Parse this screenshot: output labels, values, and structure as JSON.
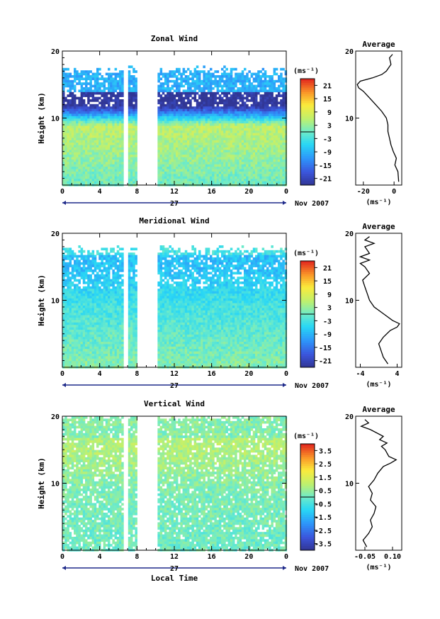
{
  "chart_data": [
    {
      "type": "heatmap",
      "title": "Zonal Wind",
      "ylabel": "Height (km)",
      "ylim": [
        0,
        20
      ],
      "y_ticks": [
        "10",
        "20"
      ],
      "x_ticks": [
        "0",
        "4",
        "8",
        "12",
        "16",
        "20",
        "0"
      ],
      "xlim": [
        0,
        24
      ],
      "day_label": "27",
      "date_label": "Nov 2007",
      "colorbar": {
        "unit_label": "(ms⁻¹)",
        "range": [
          -24,
          24
        ],
        "ticks": [
          "21",
          "15",
          "9",
          "3",
          "-3",
          "-9",
          "-15",
          "-21"
        ]
      },
      "data_gap_hours": [
        [
          6.4,
          6.9
        ],
        [
          7.8,
          10.0
        ]
      ],
      "field": {
        "surface_m_s": 0,
        "mid_m_s": 6,
        "jet_height_km": 12,
        "jet_m_s": -24,
        "top_km": 16.5
      },
      "average": {
        "title": "Average",
        "xlabel": "(ms⁻¹)",
        "x_ticks": [
          "-20",
          "0"
        ],
        "xlim": [
          -25,
          5
        ],
        "y_ticks": [
          "10",
          "20"
        ],
        "profile": [
          [
            0.5,
            3
          ],
          [
            2,
            2.5
          ],
          [
            3,
            0.5
          ],
          [
            4,
            1.5
          ],
          [
            5,
            -0.5
          ],
          [
            6,
            -2
          ],
          [
            7,
            -3
          ],
          [
            8,
            -4
          ],
          [
            9,
            -4
          ],
          [
            10,
            -5
          ],
          [
            11,
            -8
          ],
          [
            12,
            -12
          ],
          [
            13,
            -16
          ],
          [
            14,
            -20
          ],
          [
            14.5,
            -23
          ],
          [
            15,
            -24
          ],
          [
            15.5,
            -22
          ],
          [
            16,
            -14
          ],
          [
            16.5,
            -8
          ],
          [
            17,
            -5
          ],
          [
            18,
            -2
          ],
          [
            19,
            -3
          ],
          [
            19.5,
            -1
          ]
        ]
      }
    },
    {
      "type": "heatmap",
      "title": "Meridional Wind",
      "ylabel": "Height (km)",
      "ylim": [
        0,
        20
      ],
      "y_ticks": [
        "10",
        "20"
      ],
      "x_ticks": [
        "0",
        "4",
        "8",
        "12",
        "16",
        "20",
        "0"
      ],
      "xlim": [
        0,
        24
      ],
      "day_label": "27",
      "date_label": "Nov 2007",
      "colorbar": {
        "unit_label": "(ms⁻¹)",
        "range": [
          -24,
          24
        ],
        "ticks": [
          "21",
          "15",
          "9",
          "3",
          "-3",
          "-9",
          "-15",
          "-21"
        ]
      },
      "data_gap_hours": [
        [
          6.4,
          6.9
        ],
        [
          7.8,
          10.0
        ]
      ],
      "field": {
        "surface_m_s": 2,
        "mid_m_s": -3,
        "jet_height_km": 15,
        "jet_m_s": -8,
        "top_km": 17
      },
      "average": {
        "title": "Average",
        "xlabel": "(ms⁻¹)",
        "x_ticks": [
          "-4",
          "4"
        ],
        "xlim": [
          -5,
          5
        ],
        "y_ticks": [
          "10",
          "20"
        ],
        "profile": [
          [
            0.5,
            2
          ],
          [
            1.5,
            1
          ],
          [
            2.5,
            0.5
          ],
          [
            3.5,
            0
          ],
          [
            4.5,
            1
          ],
          [
            5.5,
            2.5
          ],
          [
            6,
            4
          ],
          [
            6.5,
            4.5
          ],
          [
            7,
            3
          ],
          [
            8,
            1
          ],
          [
            9,
            -1
          ],
          [
            10,
            -2
          ],
          [
            11,
            -2.5
          ],
          [
            12,
            -3
          ],
          [
            13,
            -3.5
          ],
          [
            14,
            -2
          ],
          [
            15,
            -3
          ],
          [
            15.5,
            -4
          ],
          [
            16,
            -2
          ],
          [
            16.5,
            -4
          ],
          [
            17,
            -2
          ],
          [
            18,
            -3
          ],
          [
            18.5,
            -1
          ],
          [
            19,
            -3
          ],
          [
            19.5,
            -2
          ]
        ]
      }
    },
    {
      "type": "heatmap",
      "title": "Vertical Wind",
      "ylabel": "Height (km)",
      "xlabel": "Local Time",
      "ylim": [
        0,
        20
      ],
      "y_ticks": [
        "10",
        "20"
      ],
      "x_ticks": [
        "0",
        "4",
        "8",
        "12",
        "16",
        "20",
        "0"
      ],
      "xlim": [
        0,
        24
      ],
      "day_label": "27",
      "date_label": "Nov 2007",
      "colorbar": {
        "unit_label": "(ms⁻¹)",
        "range": [
          -4,
          4
        ],
        "ticks": [
          "3.5",
          "2.5",
          "1.5",
          "0.5",
          "-0.5",
          "-1.5",
          "-2.5",
          "-3.5"
        ]
      },
      "data_gap_hours": [
        [
          6.4,
          6.9
        ],
        [
          7.8,
          10.0
        ]
      ],
      "field": {
        "surface_m_s": 0,
        "mid_m_s": 0.2,
        "jet_height_km": 15,
        "jet_m_s": 0.8,
        "top_km": 19.5
      },
      "average": {
        "title": "Average",
        "xlabel": "(ms⁻¹)",
        "x_ticks": [
          "-0.05",
          "0.10"
        ],
        "xlim": [
          -0.1,
          0.15
        ],
        "y_ticks": [
          "10",
          "20"
        ],
        "profile": [
          [
            0.5,
            -0.04
          ],
          [
            1.5,
            -0.06
          ],
          [
            2.5,
            -0.03
          ],
          [
            3.5,
            -0.01
          ],
          [
            4.5,
            -0.02
          ],
          [
            5.5,
            0.0
          ],
          [
            6.5,
            0.01
          ],
          [
            7.5,
            -0.02
          ],
          [
            8.5,
            -0.01
          ],
          [
            9.5,
            -0.03
          ],
          [
            10.5,
            0.0
          ],
          [
            11.5,
            0.02
          ],
          [
            12.5,
            0.05
          ],
          [
            13,
            0.09
          ],
          [
            13.5,
            0.12
          ],
          [
            14,
            0.08
          ],
          [
            15,
            0.06
          ],
          [
            15.5,
            0.04
          ],
          [
            16,
            0.07
          ],
          [
            16.5,
            0.03
          ],
          [
            17,
            0.05
          ],
          [
            18,
            -0.02
          ],
          [
            18.5,
            -0.07
          ],
          [
            19,
            -0.03
          ],
          [
            19.5,
            -0.05
          ]
        ]
      }
    }
  ]
}
